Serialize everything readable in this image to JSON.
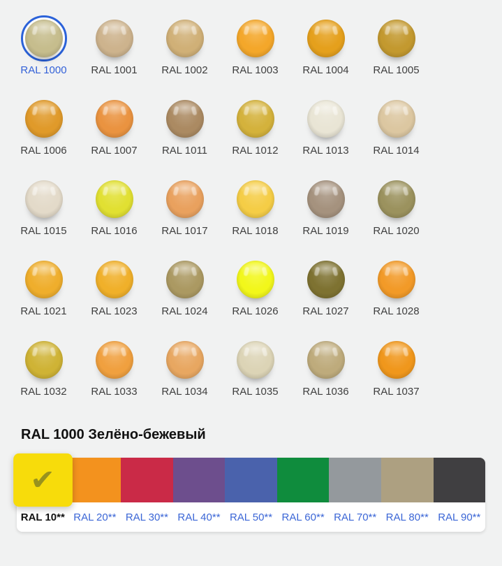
{
  "page": {
    "background": "#F1F2F2",
    "accent_ring_color": "#2B62D9",
    "link_color": "#3B66D6",
    "label_color": "#3F3F3F"
  },
  "palette": {
    "selected_label": "RAL 1000",
    "items": [
      {
        "label": "RAL 1000",
        "color": "#C6BD8D",
        "selected": true
      },
      {
        "label": "RAL 1001",
        "color": "#CDB38D"
      },
      {
        "label": "RAL 1002",
        "color": "#D0B077"
      },
      {
        "label": "RAL 1003",
        "color": "#F4A72A"
      },
      {
        "label": "RAL 1004",
        "color": "#E5A01C"
      },
      {
        "label": "RAL 1005",
        "color": "#C3992F"
      },
      {
        "label": "RAL 1006",
        "color": "#E09A2A"
      },
      {
        "label": "RAL 1007",
        "color": "#EA9340"
      },
      {
        "label": "RAL 1011",
        "color": "#AB8A62"
      },
      {
        "label": "RAL 1012",
        "color": "#D4B23C"
      },
      {
        "label": "RAL 1013",
        "color": "#E9E5D5"
      },
      {
        "label": "RAL 1014",
        "color": "#DCC7A1"
      },
      {
        "label": "RAL 1015",
        "color": "#E3DAC9"
      },
      {
        "label": "RAL 1016",
        "color": "#E1E032"
      },
      {
        "label": "RAL 1017",
        "color": "#E9A15E"
      },
      {
        "label": "RAL 1018",
        "color": "#F5CD46"
      },
      {
        "label": "RAL 1019",
        "color": "#A5927E"
      },
      {
        "label": "RAL 1020",
        "color": "#9B925E"
      },
      {
        "label": "RAL 1021",
        "color": "#EFAE2C"
      },
      {
        "label": "RAL 1023",
        "color": "#F0B02A"
      },
      {
        "label": "RAL 1024",
        "color": "#AB9962"
      },
      {
        "label": "RAL 1026",
        "color": "#F2F71B"
      },
      {
        "label": "RAL 1027",
        "color": "#7E7231"
      },
      {
        "label": "RAL 1028",
        "color": "#F29A28"
      },
      {
        "label": "RAL 1032",
        "color": "#CFB335"
      },
      {
        "label": "RAL 1033",
        "color": "#F0A03F"
      },
      {
        "label": "RAL 1034",
        "color": "#E8A761"
      },
      {
        "label": "RAL 1035",
        "color": "#DCD4B6"
      },
      {
        "label": "RAL 1036",
        "color": "#BEAB7C"
      },
      {
        "label": "RAL 1037",
        "color": "#F0971C"
      }
    ]
  },
  "heading": {
    "text": "RAL 1000 Зелёно-бежевый"
  },
  "icons": {
    "check_glyph": "✔",
    "check_color": "#98921E"
  },
  "series_bar": {
    "selected_label": "RAL 10**",
    "items": [
      {
        "label": "RAL 10**",
        "color": "#F7DC0B",
        "selected": true
      },
      {
        "label": "RAL 20**",
        "color": "#F3921E"
      },
      {
        "label": "RAL 30**",
        "color": "#CA2A47"
      },
      {
        "label": "RAL 40**",
        "color": "#6D4E8D"
      },
      {
        "label": "RAL 50**",
        "color": "#4A62AC"
      },
      {
        "label": "RAL 60**",
        "color": "#0F8C3D"
      },
      {
        "label": "RAL 70**",
        "color": "#94999D"
      },
      {
        "label": "RAL 80**",
        "color": "#ADA081"
      },
      {
        "label": "RAL 90**",
        "color": "#403F41"
      }
    ]
  }
}
